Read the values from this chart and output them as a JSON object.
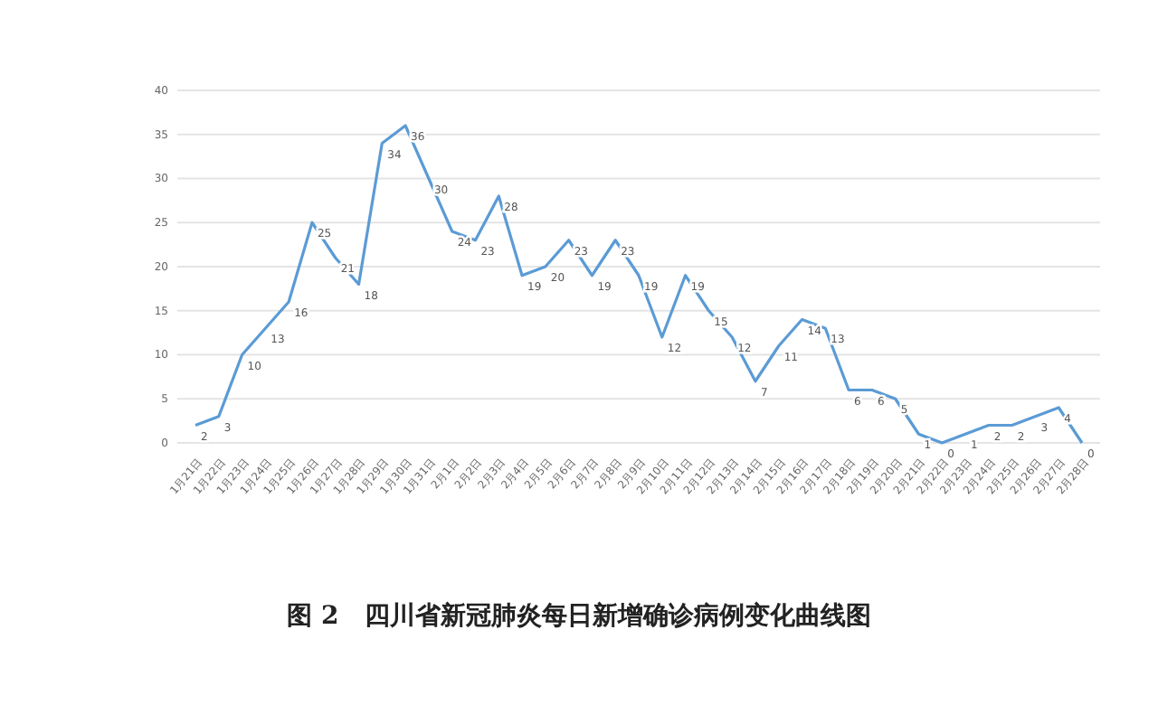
{
  "chart_data": {
    "type": "line",
    "title": "图 2　四川省新冠肺炎每日新增确诊病例变化曲线图",
    "categories": [
      "1月21日",
      "1月22日",
      "1月23日",
      "1月24日",
      "1月25日",
      "1月26日",
      "1月27日",
      "1月28日",
      "1月29日",
      "1月30日",
      "1月31日",
      "2月1日",
      "2月2日",
      "2月3日",
      "2月4日",
      "2月5日",
      "2月6日",
      "2月7日",
      "2月8日",
      "2月9日",
      "2月10日",
      "2月11日",
      "2月12日",
      "2月13日",
      "2月14日",
      "2月15日",
      "2月16日",
      "2月17日",
      "2月18日",
      "2月19日",
      "2月20日",
      "2月21日",
      "2月22日",
      "2月23日",
      "2月24日",
      "2月25日",
      "2月26日",
      "2月27日",
      "2月28日"
    ],
    "series": [
      {
        "color": "#5b9bd5",
        "values": [
          2,
          3,
          10,
          13,
          16,
          25,
          21,
          18,
          34,
          36,
          30,
          24,
          23,
          28,
          19,
          20,
          23,
          19,
          23,
          19,
          12,
          19,
          15,
          12,
          7,
          11,
          14,
          13,
          6,
          6,
          5,
          1,
          0,
          1,
          2,
          2,
          3,
          4,
          0
        ]
      }
    ],
    "ylim": [
      0,
      40
    ],
    "yticks": [
      0,
      5,
      10,
      15,
      20,
      25,
      30,
      35,
      40
    ],
    "grid": "y",
    "data_labels": true,
    "marker": "none",
    "line_style": "solid"
  }
}
